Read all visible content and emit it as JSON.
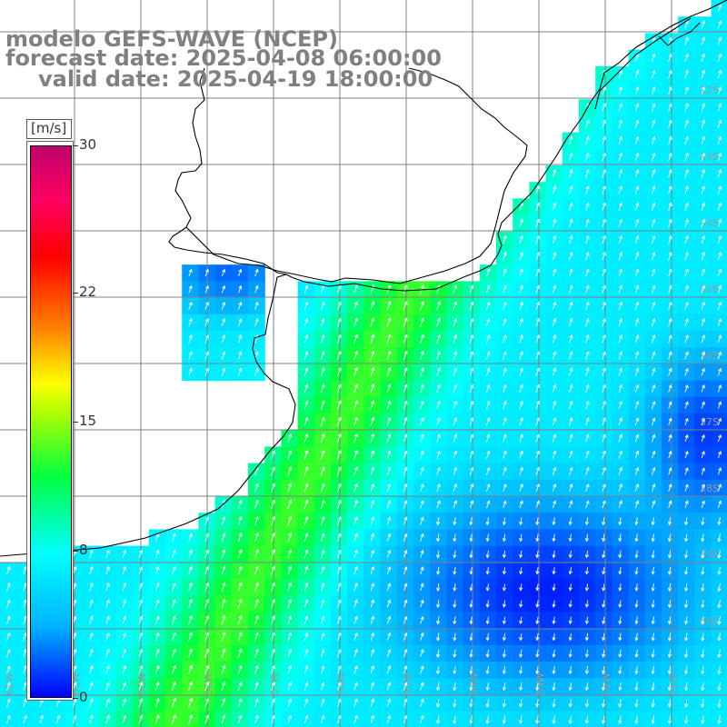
{
  "title": {
    "model_line": "modelo GEFS-WAVE (NCEP)",
    "forecast_line": "forecast date: 2025-04-08 06:00:00",
    "valid_line": "valid date: 2025-04-19 18:00:00"
  },
  "colorbar": {
    "unit": "[m/s]",
    "ticks": [
      {
        "value": 30,
        "label": "30"
      },
      {
        "value": 22,
        "label": "22"
      },
      {
        "value": 15,
        "label": "15"
      },
      {
        "value": 8,
        "label": "8"
      },
      {
        "value": 0,
        "label": "0"
      }
    ],
    "colors": [
      "#0000ff",
      "#00b4ff",
      "#00ffff",
      "#00ff40",
      "#b4ff00",
      "#ffff00",
      "#ff8000",
      "#ff0000",
      "#c0006c"
    ]
  },
  "map": {
    "lat_labels": [
      "32S",
      "33S",
      "34S",
      "35S",
      "36S",
      "37S",
      "38S",
      "39S",
      "40S"
    ],
    "lon_labels": [
      "61W",
      "60W",
      "59W",
      "58W",
      "57W",
      "56W",
      "55W",
      "54W",
      "53W",
      "52W",
      "51W"
    ],
    "land_color": "#ffffff",
    "grid_color": "#808080",
    "coast_color": "#000000",
    "arrow_color": "#ffffff"
  }
}
